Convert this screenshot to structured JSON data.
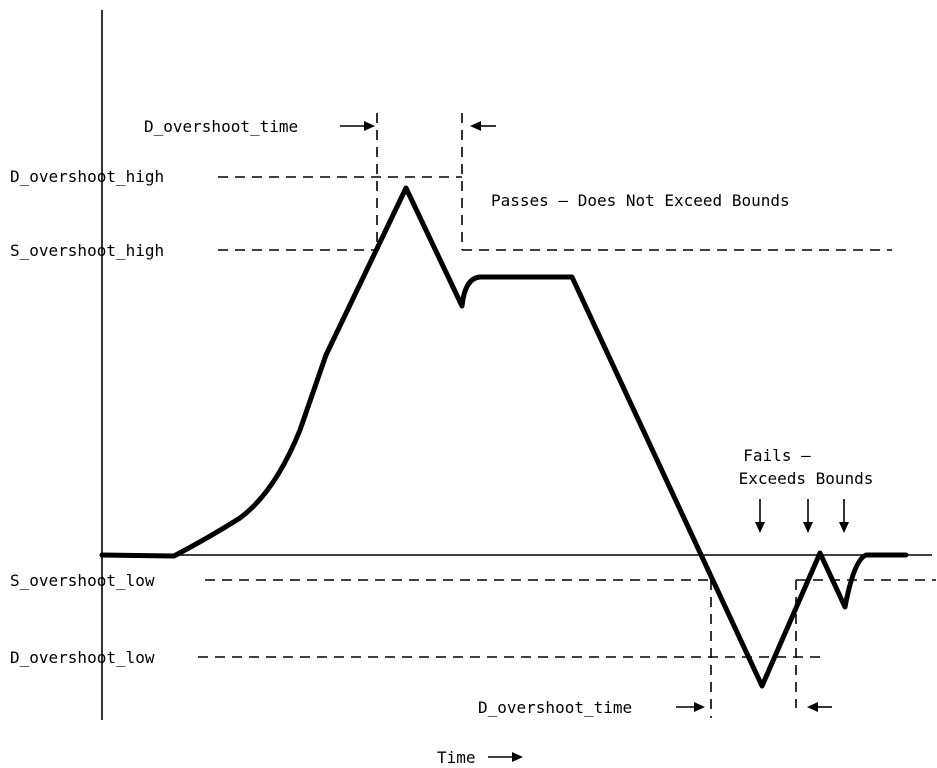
{
  "labels": {
    "d_overshoot_time_top": "D_overshoot_time",
    "d_overshoot_high": "D_overshoot_high",
    "s_overshoot_high": "S_overshoot_high",
    "passes": "Passes – Does Not Exceed Bounds",
    "fails_line1": "Fails –",
    "fails_line2": "Exceeds Bounds",
    "s_overshoot_low": "S_overshoot_low",
    "d_overshoot_low": "D_overshoot_low",
    "d_overshoot_time_bottom": "D_overshoot_time",
    "time": "Time"
  }
}
